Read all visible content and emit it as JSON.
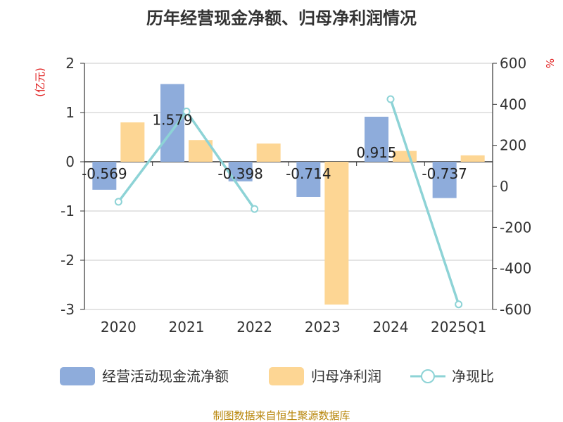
{
  "chart_data": {
    "type": "bar",
    "title": "历年经营现金净额、归母净利润情况",
    "left_unit": "(亿元)",
    "right_unit": "%",
    "categories": [
      "2020",
      "2021",
      "2022",
      "2023",
      "2024",
      "2025Q1"
    ],
    "left_axis": {
      "min": -3,
      "max": 2,
      "ticks": [
        "2",
        "1",
        "0",
        "-1",
        "-2",
        "-3"
      ]
    },
    "right_axis": {
      "min": -600,
      "max": 600,
      "ticks": [
        "600",
        "400",
        "200",
        "0",
        "-200",
        "-400",
        "-600"
      ]
    },
    "series": [
      {
        "name": "经营活动现金流净额",
        "type": "bar",
        "axis": "left",
        "color": "#8eacdb",
        "values": [
          -0.569,
          1.579,
          -0.398,
          -0.714,
          0.915,
          -0.737
        ],
        "labels": [
          "-0.569",
          "1.579",
          "-0.398",
          "-0.714",
          "0.915",
          "-0.737"
        ]
      },
      {
        "name": "归母净利润",
        "type": "bar",
        "axis": "left",
        "color": "#fdd694",
        "values": [
          0.8,
          0.44,
          0.37,
          -2.9,
          0.22,
          0.13
        ]
      },
      {
        "name": "净现比",
        "type": "line",
        "axis": "right",
        "color": "#8dd3d6",
        "values": [
          -75,
          365,
          -110,
          null,
          425,
          -575
        ]
      }
    ],
    "grid": true,
    "legend_position": "bottom"
  },
  "source": "制图数据来自恒生聚源数据库"
}
